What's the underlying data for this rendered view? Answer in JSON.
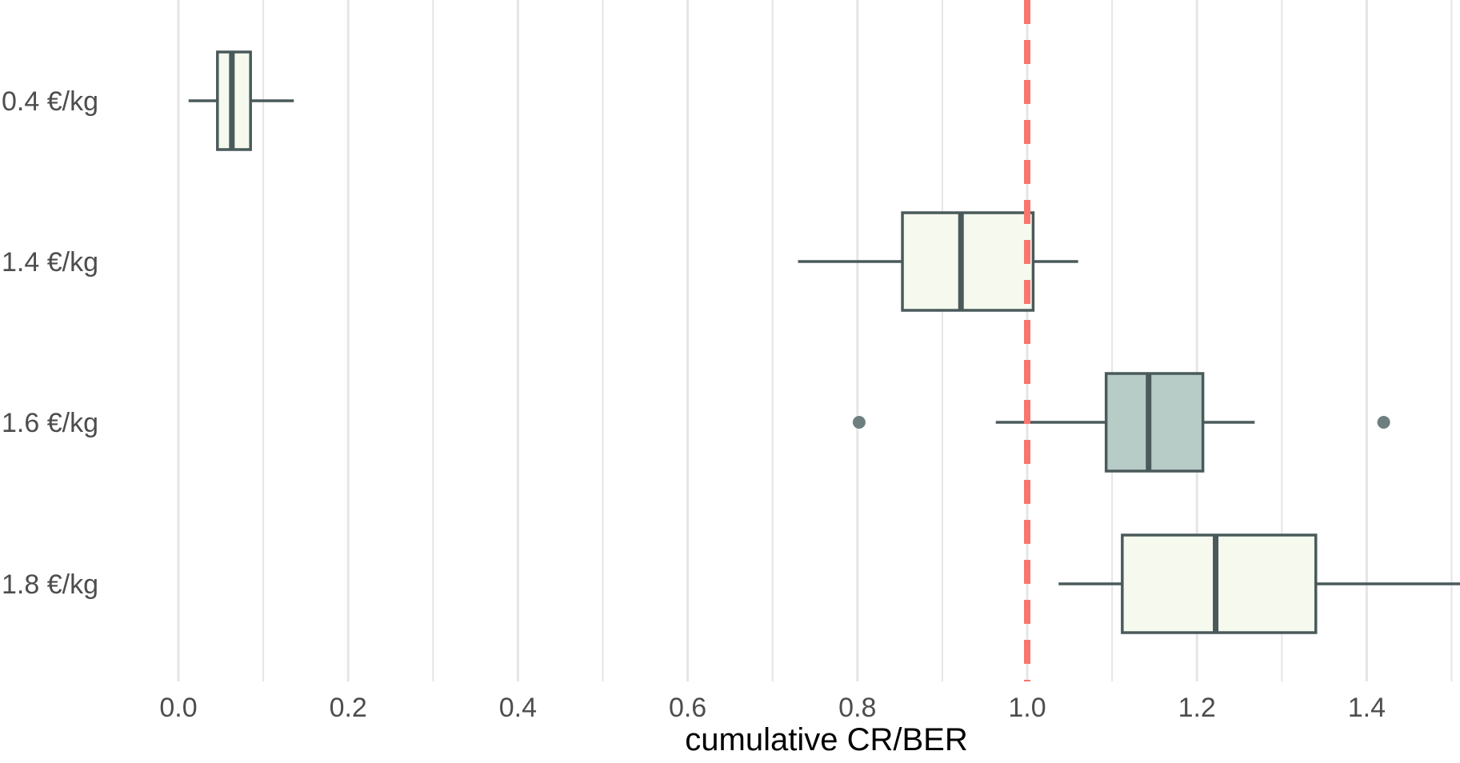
{
  "chart_data": {
    "type": "boxplot",
    "orientation": "horizontal",
    "title": "",
    "xlabel": "cumulative CR/BER",
    "ylabel": "",
    "xlim": [
      -0.02,
      1.51
    ],
    "x_ticks": [
      0.0,
      0.2,
      0.4,
      0.6,
      0.8,
      1.0,
      1.2,
      1.4
    ],
    "x_tick_labels": [
      "0.0",
      "0.2",
      "0.4",
      "0.6",
      "0.8",
      "1.0",
      "1.2",
      "1.4"
    ],
    "x_minor_gridlines": [
      0.1,
      0.3,
      0.5,
      0.7,
      0.9,
      1.1,
      1.3,
      1.5
    ],
    "grid": true,
    "reference_line": {
      "x": 1.0,
      "style": "dashed",
      "color": "#f8766d"
    },
    "colors": {
      "box_outline": "#4a5a5b",
      "box_fill_default": "#f5f9ee",
      "box_fill_highlight": "#b7ccc7",
      "outlier": "#6e7f80",
      "grid": "#e5e5e5"
    },
    "categories": [
      "0.4 €/kg",
      "1.4 €/kg",
      "1.6 €/kg",
      "1.8 €/kg"
    ],
    "boxes": [
      {
        "label": "0.4 €/kg",
        "whisker_low": 0.012,
        "q1": 0.046,
        "median": 0.063,
        "q3": 0.085,
        "whisker_high": 0.136,
        "outliers": [],
        "highlight": false
      },
      {
        "label": "1.4 €/kg",
        "whisker_low": 0.73,
        "q1": 0.853,
        "median": 0.922,
        "q3": 1.007,
        "whisker_high": 1.06,
        "outliers": [],
        "highlight": false
      },
      {
        "label": "1.6 €/kg",
        "whisker_low": 0.963,
        "q1": 1.093,
        "median": 1.143,
        "q3": 1.207,
        "whisker_high": 1.268,
        "outliers": [
          0.802,
          1.42
        ],
        "highlight": true
      },
      {
        "label": "1.8 €/kg",
        "whisker_low": 1.037,
        "q1": 1.112,
        "median": 1.222,
        "q3": 1.34,
        "whisker_high": 1.51,
        "outliers": [],
        "highlight": false
      }
    ]
  }
}
